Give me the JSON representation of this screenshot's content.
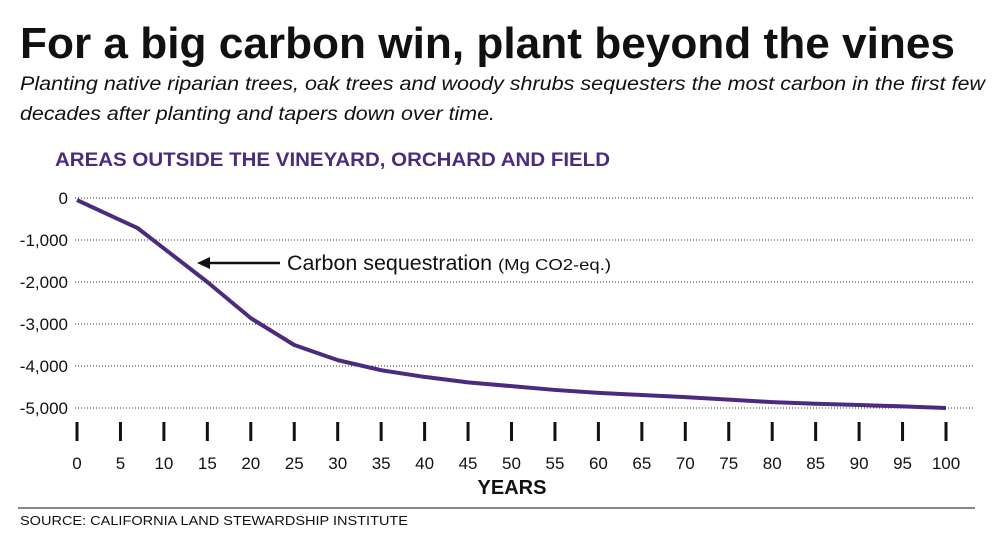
{
  "chart_data": {
    "type": "line",
    "title": "For a big carbon win, plant beyond the vines",
    "subtitle": [
      "Planting native riparian trees, oak trees and woody shrubs sequesters the most carbon in the first few",
      "decades after planting and tapers down over time."
    ],
    "heading": "AREAS OUTSIDE THE VINEYARD, ORCHARD AND FIELD",
    "annotation": "Carbon sequestration",
    "annotation_unit": "(Mg CO2-eq.)",
    "x_label": "YEARS",
    "source": "SOURCE: CALIFORNIA LAND STEWARDSHIP INSTITUTE",
    "x": [
      0,
      7,
      10,
      15,
      20,
      25,
      30,
      35,
      40,
      45,
      50,
      55,
      60,
      65,
      70,
      75,
      80,
      85,
      90,
      95,
      100
    ],
    "series": [
      {
        "color": "#4b2a7f",
        "values": [
          -50,
          -720,
          -1200,
          -2000,
          -2860,
          -3500,
          -3860,
          -4100,
          -4260,
          -4390,
          -4480,
          -4570,
          -4640,
          -4690,
          -4740,
          -4800,
          -4860,
          -4900,
          -4930,
          -4960,
          -5000
        ]
      }
    ],
    "xlim": [
      0,
      100
    ],
    "xticks": [
      0,
      5,
      10,
      15,
      20,
      25,
      30,
      35,
      40,
      45,
      50,
      55,
      60,
      65,
      70,
      75,
      80,
      85,
      90,
      95,
      100
    ],
    "ylim": [
      -5000,
      0
    ],
    "yticks": [
      0,
      {
        "value": -1000,
        "label": "-1,000"
      },
      {
        "value": -2000,
        "label": "-2,000"
      },
      {
        "value": -3000,
        "label": "-3,000"
      },
      {
        "value": -4000,
        "label": "-4,000"
      },
      {
        "value": -5000,
        "label": "-5,000"
      }
    ],
    "grid": true
  }
}
